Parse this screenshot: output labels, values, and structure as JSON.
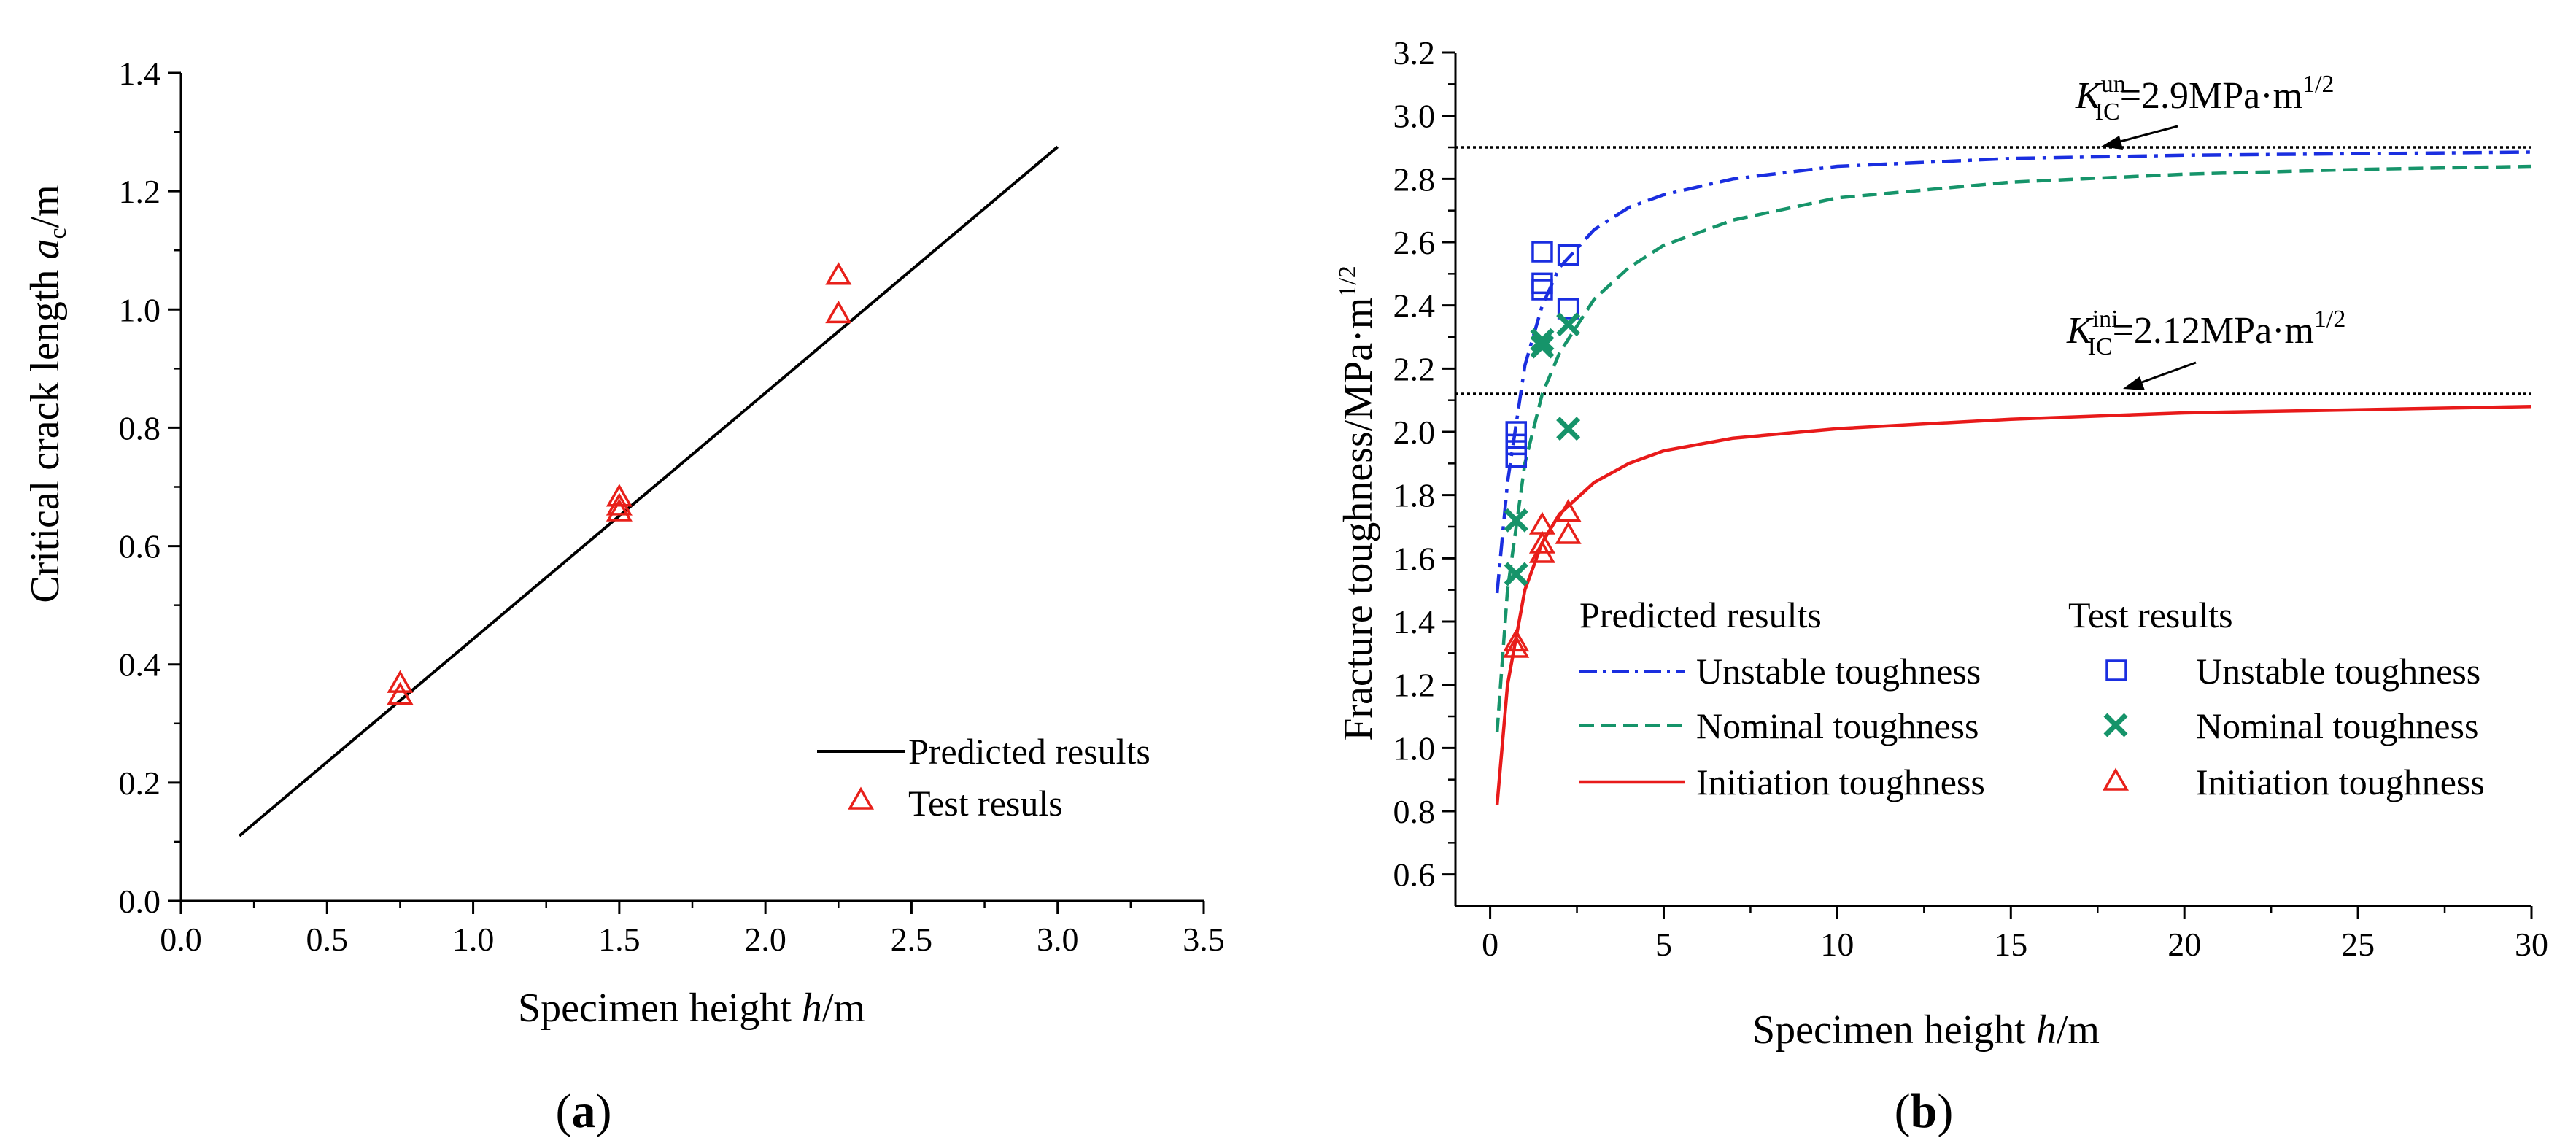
{
  "chart_data": [
    {
      "panel": "a",
      "panel_label": "(a)",
      "type": "line",
      "xlabel_prefix": "Specimen height ",
      "xlabel_var": "h",
      "xlabel_unit": "/m",
      "ylabel_prefix": "Critical crack length ",
      "ylabel_var": "a",
      "ylabel_sub": "c",
      "ylabel_unit": "/m",
      "xlim": [
        0.0,
        3.5
      ],
      "ylim": [
        0.0,
        1.4
      ],
      "xticks": [
        "0.0",
        "0.5",
        "1.0",
        "1.5",
        "2.0",
        "2.5",
        "3.0",
        "3.5"
      ],
      "yticks": [
        "0.0",
        "0.2",
        "0.4",
        "0.6",
        "0.8",
        "1.0",
        "1.2",
        "1.4"
      ],
      "legend": [
        "Predicted results",
        "Test resuls"
      ],
      "series": [
        {
          "name": "Predicted results",
          "kind": "line",
          "color": "#000000",
          "x": [
            0.2,
            3.0
          ],
          "y": [
            0.11,
            1.275
          ]
        },
        {
          "name": "Test resuls",
          "kind": "triangle",
          "color": "#e8201a",
          "x": [
            0.75,
            0.75,
            1.5,
            1.5,
            1.5,
            2.25,
            2.25
          ],
          "y": [
            0.345,
            0.365,
            0.655,
            0.665,
            0.68,
            0.99,
            1.055
          ]
        }
      ]
    },
    {
      "panel": "b",
      "panel_label": "(b)",
      "type": "line",
      "xlabel_prefix": "Specimen height ",
      "xlabel_var": "h",
      "xlabel_unit": "/m",
      "ylabel": "Fracture toughness/MPa·m",
      "ylabel_sup": "1/2",
      "xlim": [
        -1.0,
        30.0
      ],
      "ylim": [
        0.5,
        3.2
      ],
      "xticks": [
        0,
        5,
        10,
        15,
        20,
        25,
        30
      ],
      "yticks": [
        "0.6",
        "0.8",
        "1.0",
        "1.2",
        "1.4",
        "1.6",
        "1.8",
        "2.0",
        "2.2",
        "2.4",
        "2.6",
        "2.8",
        "3.0",
        "3.2"
      ],
      "legend_titles": [
        "Predicted results",
        "Test results"
      ],
      "legend_left": [
        "Unstable toughness",
        "Nominal toughness",
        "Initiation toughness"
      ],
      "legend_right": [
        "Unstable toughness",
        "Nominal toughness",
        "Initiation toughness"
      ],
      "reference_lines": [
        {
          "value": 2.9,
          "symbol": "K",
          "sub": "IC",
          "sup": "un",
          "rest": "=2.9MPa·m",
          "rest_sup": "1/2"
        },
        {
          "value": 2.12,
          "symbol": "K",
          "sub": "IC",
          "sup": "ini",
          "rest": "=2.12MPa·m",
          "rest_sup": "1/2"
        }
      ],
      "curves": [
        {
          "name": "Unstable toughness",
          "color": "#1a2ee0",
          "dash": "dashdot",
          "x": [
            0.2,
            0.5,
            1,
            1.5,
            2,
            3,
            4,
            5,
            7,
            10,
            15,
            20,
            25,
            30
          ],
          "y": [
            1.49,
            1.84,
            2.21,
            2.4,
            2.52,
            2.64,
            2.71,
            2.75,
            2.8,
            2.84,
            2.865,
            2.875,
            2.88,
            2.885
          ]
        },
        {
          "name": "Nominal toughness",
          "color": "#16946a",
          "dash": "dashed",
          "x": [
            0.2,
            0.5,
            1,
            1.5,
            2,
            3,
            4,
            5,
            7,
            10,
            15,
            20,
            25,
            30
          ],
          "y": [
            1.05,
            1.5,
            1.9,
            2.12,
            2.25,
            2.42,
            2.52,
            2.59,
            2.67,
            2.74,
            2.79,
            2.815,
            2.83,
            2.84
          ]
        },
        {
          "name": "Initiation toughness",
          "color": "#e81a1a",
          "dash": "solid",
          "x": [
            0.2,
            0.5,
            1,
            1.5,
            2,
            3,
            4,
            5,
            7,
            10,
            15,
            20,
            25,
            30
          ],
          "y": [
            0.82,
            1.2,
            1.5,
            1.65,
            1.74,
            1.84,
            1.9,
            1.94,
            1.98,
            2.01,
            2.04,
            2.06,
            2.07,
            2.08
          ]
        }
      ],
      "scatter": [
        {
          "name": "Unstable toughness",
          "marker": "square",
          "color": "#1a2ee0",
          "x": [
            0.75,
            0.75,
            0.75,
            1.5,
            1.5,
            1.5,
            2.25,
            2.25
          ],
          "y": [
            1.92,
            1.96,
            2.0,
            2.45,
            2.47,
            2.57,
            2.39,
            2.56
          ]
        },
        {
          "name": "Nominal toughness",
          "marker": "cross",
          "color": "#16946a",
          "x": [
            0.75,
            0.75,
            1.5,
            1.5,
            2.25,
            2.25
          ],
          "y": [
            1.55,
            1.72,
            2.27,
            2.29,
            2.01,
            2.34
          ]
        },
        {
          "name": "Initiation toughness",
          "marker": "triangle",
          "color": "#e8201a",
          "x": [
            0.75,
            0.75,
            1.5,
            1.5,
            1.5,
            2.25,
            2.25
          ],
          "y": [
            1.31,
            1.33,
            1.61,
            1.64,
            1.7,
            1.67,
            1.74
          ]
        }
      ]
    }
  ]
}
